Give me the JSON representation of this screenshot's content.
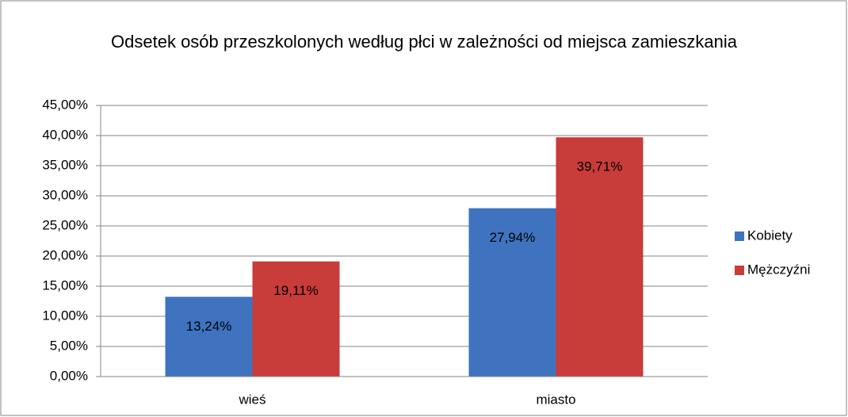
{
  "chart_data": {
    "type": "bar",
    "title": "Odsetek osób przeszkolonych według płci w zależności od miejsca zamieszkania",
    "categories": [
      "wieś",
      "miasto"
    ],
    "series": [
      {
        "name": "Kobiety",
        "color": "#3f73c0",
        "values": [
          13.24,
          27.94
        ],
        "value_labels": [
          "13,24%",
          "27,94%"
        ]
      },
      {
        "name": "Mężczyźni",
        "color": "#c83c3a",
        "values": [
          19.11,
          39.71
        ],
        "value_labels": [
          "19,11%",
          "39,71%"
        ]
      }
    ],
    "ylim": [
      0,
      45
    ],
    "yticks": [
      {
        "value": 0,
        "label": "0,00%"
      },
      {
        "value": 5,
        "label": "5,00%"
      },
      {
        "value": 10,
        "label": "10,00%"
      },
      {
        "value": 15,
        "label": "15,00%"
      },
      {
        "value": 20,
        "label": "20,00%"
      },
      {
        "value": 25,
        "label": "25,00%"
      },
      {
        "value": 30,
        "label": "30,00%"
      },
      {
        "value": 35,
        "label": "35,00%"
      },
      {
        "value": 40,
        "label": "40,00%"
      },
      {
        "value": 45,
        "label": "45,00%"
      }
    ],
    "grid": true,
    "legend": "right"
  }
}
